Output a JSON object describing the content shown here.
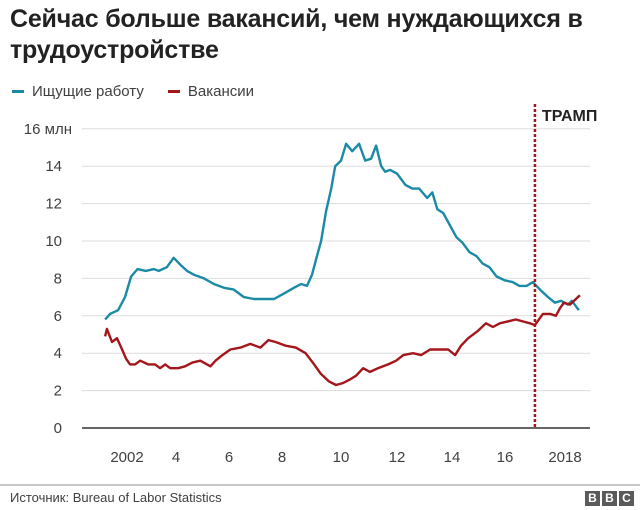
{
  "title": "Сейчас больше вакансий, чем нуждающихся в трудоустройстве",
  "legend": [
    {
      "label": "Ищущие работу",
      "color": "#1b8aa6"
    },
    {
      "label": "Вакансии",
      "color": "#a3161b"
    }
  ],
  "footer": {
    "source": "Источник: Bureau of Labor Statistics",
    "logo": [
      "B",
      "B",
      "C"
    ]
  },
  "chart_data": {
    "type": "line",
    "title": "Сейчас больше вакансий, чем нуждающихся в трудоустройстве",
    "xlabel": "",
    "ylabel": "млн",
    "ylim": [
      0,
      16
    ],
    "xlim": [
      2000.9,
      2018.6
    ],
    "yticks": [
      0,
      2,
      4,
      6,
      8,
      10,
      12,
      14,
      16
    ],
    "ytick_labels": [
      "0",
      "2",
      "4",
      "6",
      "8",
      "10",
      "12",
      "14",
      "16 млн"
    ],
    "xticks": [
      2002,
      2004,
      2006,
      2008,
      2010,
      2012,
      2014,
      2016,
      2018
    ],
    "xtick_labels": [
      "2002",
      "4",
      "6",
      "8",
      "10",
      "12",
      "14",
      "16",
      "2018"
    ],
    "grid": true,
    "legend_position": "top-left",
    "annotations": [
      {
        "label": "ТРАМП",
        "x": 2017.08,
        "style": "vertical dashed line",
        "color": "#a3161b"
      }
    ],
    "series": [
      {
        "name": "Ищущие работу",
        "color": "#1b8aa6",
        "x": [
          2000.92,
          2001.11,
          2001.41,
          2001.67,
          2001.9,
          2002.14,
          2002.45,
          2002.75,
          2002.94,
          2003.24,
          2003.5,
          2003.77,
          2004.0,
          2004.26,
          2004.64,
          2005.01,
          2005.39,
          2005.76,
          2006.14,
          2006.52,
          2006.89,
          2007.27,
          2007.65,
          2008.02,
          2008.29,
          2008.51,
          2008.7,
          2008.85,
          2009.04,
          2009.23,
          2009.42,
          2009.57,
          2009.79,
          2009.98,
          2010.21,
          2010.47,
          2010.7,
          2010.92,
          2011.11,
          2011.3,
          2011.45,
          2011.64,
          2011.9,
          2012.21,
          2012.47,
          2012.73,
          2013.03,
          2013.22,
          2013.41,
          2013.63,
          2013.9,
          2014.13,
          2014.36,
          2014.62,
          2014.88,
          2015.11,
          2015.37,
          2015.64,
          2015.94,
          2016.24,
          2016.5,
          2016.77,
          2017.0,
          2017.27,
          2017.57,
          2017.83,
          2018.06,
          2018.32,
          2018.47,
          2018.73
        ],
        "values": [
          5.8,
          6.1,
          6.3,
          7.0,
          8.1,
          8.5,
          8.4,
          8.5,
          8.4,
          8.6,
          9.1,
          8.7,
          8.4,
          8.2,
          8.0,
          7.7,
          7.5,
          7.4,
          7.0,
          6.9,
          6.9,
          6.9,
          7.2,
          7.5,
          7.7,
          7.6,
          8.2,
          9.0,
          10.0,
          11.6,
          12.8,
          14.0,
          14.3,
          15.2,
          14.8,
          15.2,
          14.3,
          14.4,
          15.1,
          14.0,
          13.7,
          13.8,
          13.6,
          13.0,
          12.8,
          12.8,
          12.3,
          12.6,
          11.7,
          11.5,
          10.8,
          10.2,
          9.9,
          9.4,
          9.2,
          8.8,
          8.6,
          8.1,
          7.9,
          7.8,
          7.6,
          7.6,
          7.8,
          7.4,
          7.0,
          6.7,
          6.8,
          6.6,
          6.8,
          6.3
        ]
      },
      {
        "name": "Вакансии",
        "color": "#a3161b",
        "x": [
          2000.92,
          2000.99,
          2001.18,
          2001.37,
          2001.56,
          2001.71,
          2001.86,
          2002.05,
          2002.24,
          2002.54,
          2002.8,
          2002.99,
          2003.18,
          2003.37,
          2003.67,
          2003.93,
          2004.2,
          2004.5,
          2004.88,
          2005.07,
          2005.33,
          2005.63,
          2006.01,
          2006.38,
          2006.76,
          2007.06,
          2007.33,
          2007.71,
          2008.09,
          2008.46,
          2008.73,
          2009.03,
          2009.33,
          2009.6,
          2009.86,
          2010.13,
          2010.36,
          2010.62,
          2010.88,
          2011.18,
          2011.56,
          2011.86,
          2012.13,
          2012.5,
          2012.8,
          2013.14,
          2013.44,
          2013.82,
          2014.08,
          2014.3,
          2014.57,
          2014.94,
          2015.24,
          2015.5,
          2015.76,
          2016.06,
          2016.36,
          2016.62,
          2016.89,
          2017.08,
          2017.38,
          2017.65,
          2017.87,
          2018.02,
          2018.17,
          2018.4,
          2018.62,
          2018.77
        ],
        "values": [
          4.9,
          5.3,
          4.6,
          4.8,
          4.2,
          3.7,
          3.4,
          3.4,
          3.6,
          3.4,
          3.4,
          3.2,
          3.4,
          3.2,
          3.2,
          3.3,
          3.5,
          3.6,
          3.3,
          3.6,
          3.9,
          4.2,
          4.3,
          4.5,
          4.3,
          4.7,
          4.6,
          4.4,
          4.3,
          4.0,
          3.5,
          2.9,
          2.5,
          2.3,
          2.4,
          2.6,
          2.8,
          3.2,
          3.0,
          3.2,
          3.4,
          3.6,
          3.9,
          4.0,
          3.9,
          4.2,
          4.2,
          4.2,
          3.9,
          4.4,
          4.8,
          5.2,
          5.6,
          5.4,
          5.6,
          5.7,
          5.8,
          5.7,
          5.6,
          5.5,
          6.1,
          6.1,
          6.0,
          6.4,
          6.7,
          6.6,
          6.9,
          7.1
        ]
      }
    ]
  }
}
